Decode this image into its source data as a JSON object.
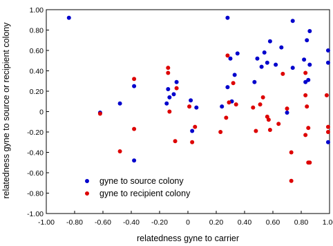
{
  "chart_data": {
    "type": "scatter",
    "title": "",
    "xlabel": "relatedness gyne to carrier",
    "ylabel": "relatedness gyne to source or recipient colony",
    "xlim": [
      -1.0,
      1.0
    ],
    "ylim": [
      -1.0,
      1.0
    ],
    "xticks": [
      "-1.00",
      "-0.80",
      "-0.60",
      "-0.40",
      "-0.20",
      "0",
      "0.20",
      "0.40",
      "0.60",
      "0.80",
      "1.00"
    ],
    "yticks": [
      "1.00",
      "0.80",
      "0.60",
      "0.40",
      "0.20",
      "0",
      "-0.20",
      "-0.40",
      "-0.60",
      "-0.80",
      "-1.00"
    ],
    "grid": false,
    "legend_position": "bottom-left",
    "series": [
      {
        "name": "gyne to source colony",
        "color": "#0000cc",
        "points": [
          [
            -0.84,
            0.92
          ],
          [
            -0.62,
            -0.01
          ],
          [
            -0.48,
            0.08
          ],
          [
            -0.38,
            0.25
          ],
          [
            -0.38,
            -0.48
          ],
          [
            -0.15,
            0.08
          ],
          [
            -0.14,
            0.22
          ],
          [
            -0.13,
            0.14
          ],
          [
            -0.1,
            0.17
          ],
          [
            -0.08,
            0.29
          ],
          [
            0.02,
            0.11
          ],
          [
            0.03,
            -0.19
          ],
          [
            0.06,
            0.04
          ],
          [
            0.24,
            0.05
          ],
          [
            0.28,
            0.92
          ],
          [
            0.28,
            0.24
          ],
          [
            0.3,
            0.52
          ],
          [
            0.31,
            0.1
          ],
          [
            0.33,
            0.36
          ],
          [
            0.35,
            0.57
          ],
          [
            0.47,
            0.29
          ],
          [
            0.49,
            0.52
          ],
          [
            0.52,
            0.44
          ],
          [
            0.54,
            0.58
          ],
          [
            0.56,
            0.48
          ],
          [
            0.58,
            0.69
          ],
          [
            0.62,
            0.46
          ],
          [
            0.66,
            0.63
          ],
          [
            0.7,
            -0.01
          ],
          [
            0.74,
            0.89
          ],
          [
            0.74,
            0.43
          ],
          [
            0.82,
            0.51
          ],
          [
            0.83,
            0.29
          ],
          [
            0.84,
            0.7
          ],
          [
            0.85,
            0.31
          ],
          [
            0.86,
            0.79
          ],
          [
            0.86,
            0.46
          ],
          [
            0.99,
            0.6
          ],
          [
            0.99,
            0.48
          ],
          [
            0.99,
            -0.3
          ]
        ]
      },
      {
        "name": "gyne to recipient colony",
        "color": "#dd0000",
        "points": [
          [
            -0.62,
            -0.02
          ],
          [
            -0.48,
            -0.39
          ],
          [
            -0.38,
            0.32
          ],
          [
            -0.38,
            -0.17
          ],
          [
            -0.14,
            0.43
          ],
          [
            -0.14,
            0.38
          ],
          [
            -0.13,
            0.0
          ],
          [
            -0.08,
            0.23
          ],
          [
            -0.09,
            -0.29
          ],
          [
            0.01,
            0.05
          ],
          [
            0.03,
            -0.3
          ],
          [
            0.05,
            -0.15
          ],
          [
            0.23,
            -0.2
          ],
          [
            0.27,
            -0.06
          ],
          [
            0.28,
            0.55
          ],
          [
            0.29,
            0.09
          ],
          [
            0.32,
            0.28
          ],
          [
            0.34,
            0.07
          ],
          [
            0.46,
            0.04
          ],
          [
            0.48,
            -0.19
          ],
          [
            0.51,
            0.07
          ],
          [
            0.53,
            0.14
          ],
          [
            0.56,
            -0.05
          ],
          [
            0.57,
            -0.08
          ],
          [
            0.58,
            -0.18
          ],
          [
            0.64,
            -0.12
          ],
          [
            0.67,
            0.37
          ],
          [
            0.7,
            0.03
          ],
          [
            0.73,
            -0.4
          ],
          [
            0.73,
            -0.68
          ],
          [
            0.83,
            0.38
          ],
          [
            0.83,
            0.16
          ],
          [
            0.83,
            -0.23
          ],
          [
            0.84,
            0.05
          ],
          [
            0.85,
            -0.16
          ],
          [
            0.85,
            -0.5
          ],
          [
            0.86,
            -0.5
          ],
          [
            0.98,
            0.16
          ],
          [
            0.99,
            -0.15
          ],
          [
            0.99,
            -0.2
          ]
        ]
      }
    ]
  }
}
